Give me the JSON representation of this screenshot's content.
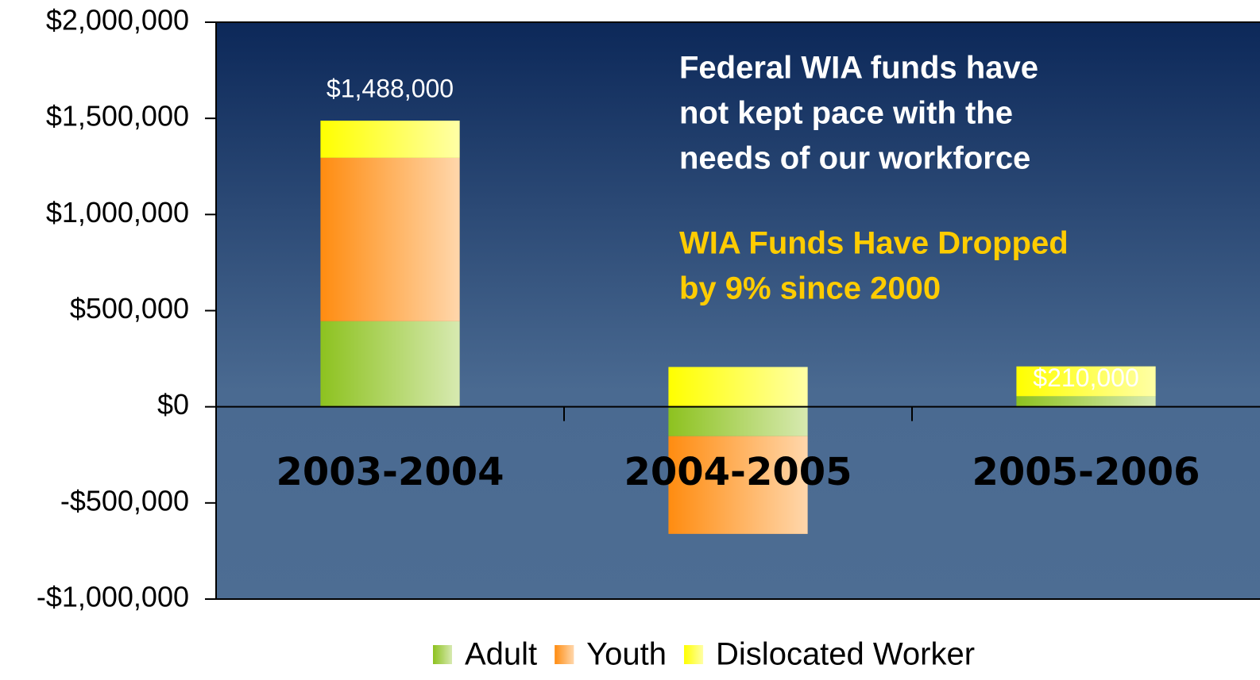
{
  "chart_data": {
    "type": "stacked_bar",
    "categories": [
      "2003-2004",
      "2004-2005",
      "2005-2006"
    ],
    "series": [
      {
        "name": "Adult",
        "color": "#8dc21f",
        "values": [
          445000,
          -153000,
          55000
        ]
      },
      {
        "name": "Youth",
        "color": "#ff8c10",
        "values": [
          850000,
          -508000,
          0
        ]
      },
      {
        "name": "Dislocated Worker",
        "color": "#ffff00",
        "values": [
          193000,
          207000,
          155000
        ]
      }
    ],
    "totals": [
      1488000,
      null,
      210000
    ],
    "total_labels": [
      "$1,488,000",
      null,
      "$210,000"
    ],
    "ylim": [
      -1000000,
      2000000
    ],
    "yticks": [
      {
        "value": -1000000,
        "label": "-$1,000,000"
      },
      {
        "value": -500000,
        "label": "-$500,000"
      },
      {
        "value": 0,
        "label": "$0"
      },
      {
        "value": 500000,
        "label": "$500,000"
      },
      {
        "value": 1000000,
        "label": "$1,000,000"
      },
      {
        "value": 1500000,
        "label": "$1,500,000"
      },
      {
        "value": 2000000,
        "label": "$2,000,000"
      }
    ],
    "annotations": [
      {
        "color": "#ffffff",
        "lines": [
          "Federal WIA funds have",
          "not kept pace with the",
          "needs of our workforce"
        ]
      },
      {
        "color": "#ffcc00",
        "lines": [
          "WIA Funds Have Dropped",
          "by 9% since 2000"
        ]
      }
    ],
    "legend": "bottom"
  }
}
